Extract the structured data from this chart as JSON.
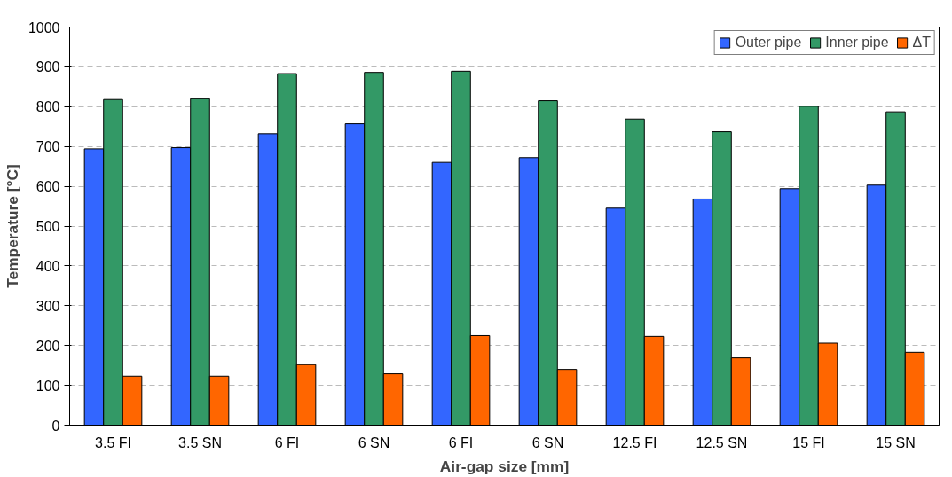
{
  "chart_data": {
    "type": "bar",
    "xlabel": "Air-gap size [mm]",
    "ylabel": "Temperature [°C]",
    "categories": [
      "3.5 FI",
      "3.5 SN",
      "6 FI",
      "6 SN",
      "6 FI",
      "6 SN",
      "12.5 FI",
      "12.5 SN",
      "15 FI",
      "15 SN"
    ],
    "series": [
      {
        "name": "Outer pipe",
        "color": "#3366ff",
        "values": [
          694,
          697,
          732,
          757,
          660,
          672,
          545,
          568,
          594,
          603
        ]
      },
      {
        "name": "Inner pipe",
        "color": "#339966",
        "values": [
          818,
          820,
          883,
          886,
          889,
          815,
          769,
          737,
          801,
          787
        ]
      },
      {
        "name": "ΔT",
        "color": "#ff6600",
        "values": [
          123,
          123,
          152,
          129,
          225,
          140,
          223,
          169,
          206,
          183
        ]
      }
    ],
    "ylim": [
      0,
      1000
    ],
    "yticks": [
      0,
      100,
      200,
      300,
      400,
      500,
      600,
      700,
      800,
      900,
      1000
    ],
    "grid": "y",
    "legend": "top right"
  }
}
